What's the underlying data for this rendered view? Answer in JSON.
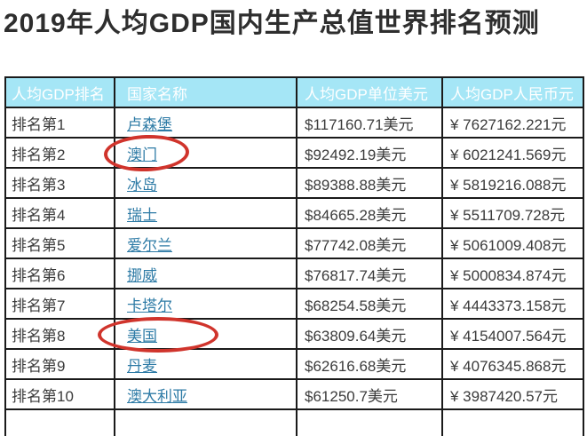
{
  "page": {
    "title": "2019年人均GDP国内生产总值世界排名预测"
  },
  "table": {
    "headers": [
      "人均GDP排名",
      "国家名称",
      "人均GDP单位美元",
      "人均GDP人民币元"
    ],
    "rows": [
      {
        "rank": "排名第1",
        "country": "卢森堡",
        "usd": "$117160.71美元",
        "rmb": "¥ 7627162.221元",
        "circled": false
      },
      {
        "rank": "排名第2",
        "country": "澳门",
        "usd": "$92492.19美元",
        "rmb": "¥ 6021241.569元",
        "circled": true
      },
      {
        "rank": "排名第3",
        "country": "冰岛",
        "usd": "$89388.88美元",
        "rmb": "¥ 5819216.088元",
        "circled": false
      },
      {
        "rank": "排名第4",
        "country": "瑞士",
        "usd": "$84665.28美元",
        "rmb": "¥ 5511709.728元",
        "circled": false
      },
      {
        "rank": "排名第5",
        "country": "爱尔兰",
        "usd": "$77742.08美元",
        "rmb": "¥ 5061009.408元",
        "circled": false
      },
      {
        "rank": "排名第6",
        "country": "挪威",
        "usd": "$76817.74美元",
        "rmb": "¥ 5000834.874元",
        "circled": false
      },
      {
        "rank": "排名第7",
        "country": "卡塔尔",
        "usd": "$68254.58美元",
        "rmb": "¥ 4443373.158元",
        "circled": false
      },
      {
        "rank": "排名第8",
        "country": "美国",
        "usd": "$63809.64美元",
        "rmb": "¥ 4154007.564元",
        "circled": true
      },
      {
        "rank": "排名第9",
        "country": "丹麦",
        "usd": "$62616.68美元",
        "rmb": "¥ 4076345.868元",
        "circled": false
      },
      {
        "rank": "排名第10",
        "country": "澳大利亚",
        "usd": "$61250.7美元",
        "rmb": "¥ 3987420.57元",
        "circled": false
      }
    ]
  },
  "annotations": {
    "circled_countries": [
      "澳门",
      "美国"
    ]
  },
  "colors": {
    "header_bg": "#a5e6f6",
    "header_text": "#ffffff",
    "link": "#2e7ba6",
    "annotation_red": "#d0342c",
    "border": "#1a1a1a",
    "body_text": "#3b3b3b",
    "title_text": "#2e2e2e"
  }
}
